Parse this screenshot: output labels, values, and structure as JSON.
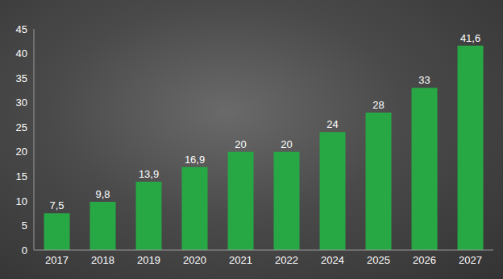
{
  "chart_data": {
    "type": "bar",
    "categories": [
      "2017",
      "2018",
      "2019",
      "2020",
      "2021",
      "2022",
      "2024",
      "2025",
      "2026",
      "2027"
    ],
    "values": [
      7.5,
      9.8,
      13.9,
      16.9,
      20,
      20,
      24,
      28,
      33,
      41.6
    ],
    "value_labels": [
      "7,5",
      "9,8",
      "13,9",
      "16,9",
      "20",
      "20",
      "24",
      "28",
      "33",
      "41,6"
    ],
    "color": "#27a844",
    "ylim": [
      0,
      45
    ],
    "yticks": [
      0,
      5,
      10,
      15,
      20,
      25,
      30,
      35,
      40,
      45
    ],
    "grid": false,
    "data_labels": true
  }
}
